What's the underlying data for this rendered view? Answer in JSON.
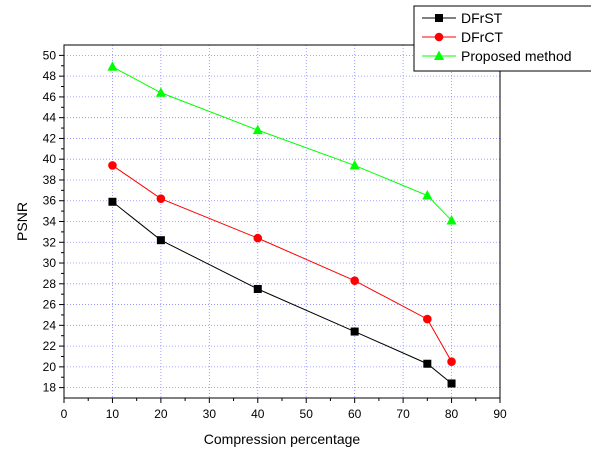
{
  "chart_data": {
    "type": "line",
    "xlabel": "Compression percentage",
    "ylabel": "PSNR",
    "xlim": [
      0,
      90
    ],
    "ylim": [
      17,
      51
    ],
    "x_ticks": [
      0,
      10,
      20,
      30,
      40,
      50,
      60,
      70,
      80,
      90
    ],
    "y_ticks": [
      18,
      20,
      22,
      24,
      26,
      28,
      30,
      32,
      34,
      36,
      38,
      40,
      42,
      44,
      46,
      48,
      50
    ],
    "grid": true,
    "legend_position": "top-right",
    "x": [
      10,
      20,
      40,
      60,
      75,
      80
    ],
    "series": [
      {
        "name": "DFrST",
        "color": "#000000",
        "marker": "square",
        "values": [
          35.9,
          32.2,
          27.5,
          23.4,
          20.3,
          18.4
        ]
      },
      {
        "name": "DFrCT",
        "color": "#ff0000",
        "marker": "circle",
        "values": [
          39.4,
          36.2,
          32.4,
          28.3,
          24.6,
          20.5
        ]
      },
      {
        "name": "Proposed method",
        "color": "#00ff00",
        "marker": "triangle",
        "values": [
          48.9,
          46.4,
          42.8,
          39.4,
          36.5,
          34.1
        ]
      }
    ]
  }
}
